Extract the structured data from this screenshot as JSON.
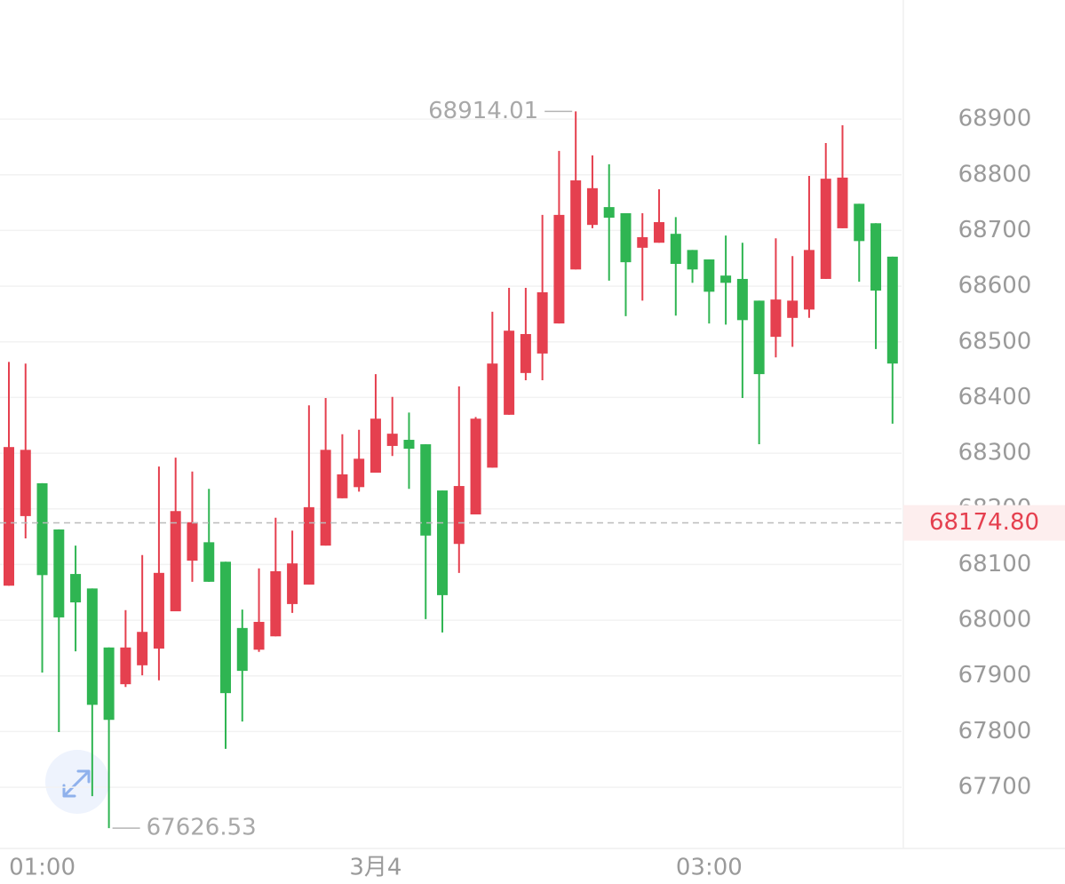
{
  "chart_data": {
    "type": "candlestick",
    "categories": [
      null,
      null,
      "01:00",
      null,
      null,
      null,
      null,
      null,
      null,
      null,
      null,
      null,
      null,
      null,
      null,
      null,
      null,
      null,
      null,
      null,
      null,
      null,
      "3月4",
      null,
      null,
      null,
      null,
      null,
      null,
      null,
      null,
      null,
      null,
      null,
      null,
      null,
      null,
      null,
      null,
      null,
      null,
      null,
      "03:00",
      null,
      null,
      null,
      null,
      null,
      null,
      null,
      null,
      null,
      null,
      null
    ],
    "open": [
      68062,
      68187,
      68246,
      68163,
      68083,
      68057,
      67951,
      67885,
      67919,
      67949,
      68016,
      68107,
      68140,
      68105,
      67986,
      67947,
      67971,
      68029,
      68064,
      68134,
      68219,
      68239,
      68265,
      68313,
      68324,
      68316,
      68233,
      68137,
      68190,
      68274,
      68369,
      68444,
      68479,
      68533,
      68630,
      68710,
      68742,
      68731,
      68669,
      68678,
      68694,
      68665,
      68648,
      68619,
      68613,
      68574,
      68509,
      68543,
      68558,
      68613,
      68704,
      68748,
      68713,
      68653
    ],
    "high": [
      68464,
      68461,
      68246,
      68163,
      68134,
      68057,
      67951,
      68018,
      68117,
      68276,
      68292,
      68267,
      68236,
      68105,
      68019,
      68093,
      68184,
      68161,
      68386,
      68399,
      68334,
      68342,
      68442,
      68401,
      68373,
      68316,
      68233,
      68420,
      68365,
      68554,
      68597,
      68597,
      68728,
      68843,
      68914.01,
      68835,
      68819,
      68731,
      68731,
      68774,
      68724,
      68665,
      68648,
      68691,
      68678,
      68574,
      68686,
      68654,
      68798,
      68857,
      68889,
      68748,
      68713,
      68653
    ],
    "low": [
      68062,
      68147,
      67906,
      67799,
      67944,
      67684,
      67626.53,
      67880,
      67901,
      67892,
      68016,
      68069,
      68069,
      67769,
      67818,
      67943,
      67971,
      68013,
      68064,
      68134,
      68219,
      68231,
      68265,
      68295,
      68236,
      68002,
      67978,
      68085,
      68190,
      68274,
      68369,
      68431,
      68431,
      68533,
      68630,
      68704,
      68610,
      68546,
      68574,
      68678,
      68547,
      68606,
      68533,
      68531,
      68399,
      68316,
      68472,
      68491,
      68543,
      68613,
      68704,
      68608,
      68487,
      68353
    ],
    "close": [
      68311,
      68306,
      68081,
      68005,
      68032,
      67848,
      67821,
      67951,
      67979,
      68085,
      68196,
      68176,
      68069,
      67869,
      67909,
      67997,
      68088,
      68102,
      68203,
      68306,
      68262,
      68290,
      68362,
      68335,
      68308,
      68152,
      68045,
      68241,
      68362,
      68461,
      68520,
      68514,
      68589,
      68728,
      68790,
      68776,
      68723,
      68643,
      68688,
      68715,
      68640,
      68630,
      68590,
      68606,
      68539,
      68442,
      68576,
      68574,
      68665,
      68793,
      68795,
      68681,
      68592,
      68461
    ],
    "up_color": "#e5404f",
    "down_color": "#2fb552",
    "ylim": [
      67590,
      69114
    ],
    "yticks": [
      67700,
      67800,
      67900,
      68000,
      68100,
      68200,
      68300,
      68400,
      68500,
      68600,
      68700,
      68800,
      68900
    ],
    "grid": true,
    "current_price": 68174.8,
    "current_price_label": "68174.80"
  }
}
